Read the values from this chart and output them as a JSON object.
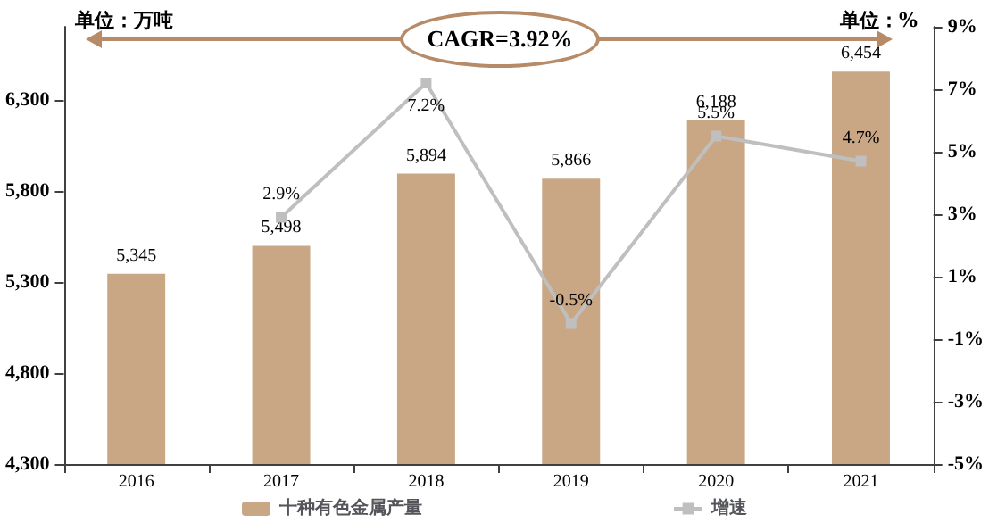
{
  "chart_data": {
    "type": "bar",
    "ylabel": "单位：万吨",
    "y2label": "单位：%",
    "categories": [
      "2016",
      "2017",
      "2018",
      "2019",
      "2020",
      "2021"
    ],
    "series": [
      {
        "name": "十种有色金属产量",
        "color": "#c9a784",
        "values": [
          5345,
          5498,
          5894,
          5866,
          6188,
          6454
        ],
        "value_labels": [
          "5,345",
          "5,498",
          "5,894",
          "5,866",
          "6,188",
          "6,454"
        ]
      },
      {
        "name": "增速",
        "type": "line",
        "axis": "y2",
        "color": "#bfbfbf",
        "marker": "square",
        "values": [
          null,
          2.9,
          7.2,
          -0.5,
          5.5,
          4.7
        ],
        "value_labels": [
          null,
          "2.9%",
          "7.2%",
          "-0.5%",
          "5.5%",
          "4.7%"
        ]
      }
    ],
    "ylim": [
      4300,
      6700
    ],
    "yticks": [
      {
        "value": 4300,
        "label": "4,300"
      },
      {
        "value": 4800,
        "label": "4,800"
      },
      {
        "value": 5300,
        "label": "5,300"
      },
      {
        "value": 5800,
        "label": "5,800"
      },
      {
        "value": 6300,
        "label": "6,300"
      }
    ],
    "y2lim": [
      -5,
      9
    ],
    "y2ticks": [
      {
        "value": -5,
        "label": "-5%"
      },
      {
        "value": -3,
        "label": "-3%"
      },
      {
        "value": -1,
        "label": "-1%"
      },
      {
        "value": 1,
        "label": "1%"
      },
      {
        "value": 3,
        "label": "3%"
      },
      {
        "value": 5,
        "label": "5%"
      },
      {
        "value": 7,
        "label": "7%"
      },
      {
        "value": 9,
        "label": "9%"
      }
    ],
    "annotations": [
      "CAGR=3.92%"
    ],
    "grid": false,
    "legend": "bottom"
  }
}
